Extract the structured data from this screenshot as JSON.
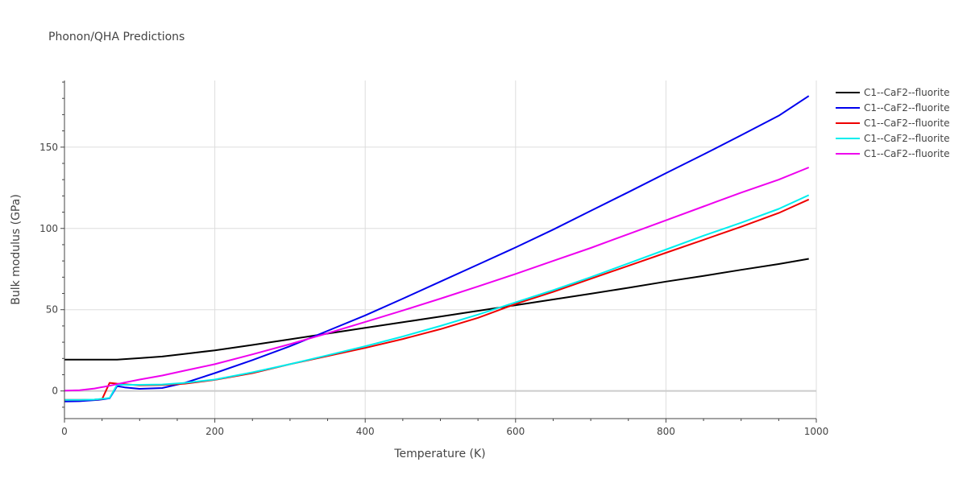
{
  "chart_data": {
    "type": "line",
    "title": "Phonon/QHA Predictions",
    "xlabel": "Temperature (K)",
    "ylabel": "Bulk modulus (GPa)",
    "xlim": [
      0,
      1000
    ],
    "ylim": [
      -17,
      191
    ],
    "xticks": [
      0,
      200,
      400,
      600,
      800,
      1000
    ],
    "xtick_labels": [
      "0",
      "200",
      "400",
      "600",
      "800",
      "1000"
    ],
    "yticks": [
      0,
      50,
      100,
      150
    ],
    "ytick_labels": [
      "0",
      "50",
      "100",
      "150"
    ],
    "grid": true,
    "legend_position": "top-right",
    "series": [
      {
        "name": "C1--CaF2--fluorite",
        "color": "#000000",
        "x": [
          0,
          20,
          40,
          70,
          100,
          130,
          160,
          200,
          250,
          300,
          350,
          400,
          450,
          500,
          550,
          600,
          650,
          700,
          750,
          800,
          850,
          900,
          950,
          990
        ],
        "y": [
          19.3,
          19.3,
          19.3,
          19.3,
          20.2,
          21.2,
          22.8,
          25.0,
          28.3,
          31.8,
          35.3,
          38.8,
          42.3,
          45.8,
          49.3,
          52.8,
          56.3,
          59.8,
          63.5,
          67.3,
          70.8,
          74.5,
          78.1,
          81.3
        ]
      },
      {
        "name": "C1--CaF2--fluorite",
        "color": "#0000ee",
        "x": [
          0,
          20,
          45,
          60,
          70,
          80,
          100,
          130,
          160,
          200,
          250,
          300,
          350,
          400,
          450,
          500,
          550,
          600,
          650,
          700,
          750,
          800,
          850,
          900,
          950,
          990
        ],
        "y": [
          -6.5,
          -6.3,
          -5.5,
          -4.5,
          3.0,
          2.2,
          1.3,
          1.8,
          5.0,
          11.0,
          19.0,
          27.5,
          37.0,
          46.5,
          56.8,
          67.3,
          77.8,
          88.3,
          99.3,
          110.8,
          122.3,
          134.0,
          145.5,
          157.3,
          169.3,
          181.5
        ]
      },
      {
        "name": "C1--CaF2--fluorite",
        "color": "#ee0000",
        "x": [
          0,
          20,
          40,
          50,
          60,
          70,
          100,
          130,
          160,
          200,
          250,
          300,
          350,
          400,
          450,
          500,
          550,
          600,
          650,
          700,
          750,
          800,
          850,
          900,
          950,
          990
        ],
        "y": [
          -5.5,
          -5.5,
          -5.3,
          -5.0,
          5.0,
          4.5,
          3.5,
          3.7,
          4.5,
          6.8,
          11.0,
          16.5,
          21.5,
          26.5,
          32.0,
          38.0,
          45.0,
          53.5,
          61.0,
          69.0,
          77.0,
          85.0,
          93.0,
          101.0,
          109.5,
          117.8
        ]
      },
      {
        "name": "C1--CaF2--fluorite",
        "color": "#00eeee",
        "x": [
          0,
          20,
          40,
          60,
          70,
          100,
          130,
          160,
          200,
          250,
          300,
          350,
          400,
          450,
          500,
          550,
          600,
          650,
          700,
          750,
          800,
          850,
          900,
          950,
          990
        ],
        "y": [
          -5.5,
          -5.5,
          -5.3,
          -4.3,
          3.8,
          3.8,
          4.0,
          5.0,
          7.0,
          11.5,
          16.5,
          22.0,
          27.5,
          33.5,
          40.0,
          47.0,
          54.5,
          62.0,
          70.0,
          78.5,
          87.0,
          95.5,
          103.5,
          112.0,
          120.5
        ]
      },
      {
        "name": "C1--CaF2--fluorite",
        "color": "#ee00ee",
        "x": [
          0,
          20,
          40,
          60,
          80,
          100,
          130,
          160,
          200,
          250,
          300,
          350,
          400,
          450,
          500,
          550,
          600,
          650,
          700,
          750,
          800,
          850,
          900,
          950,
          990
        ],
        "y": [
          0.2,
          0.5,
          1.5,
          3.2,
          5.2,
          7.0,
          9.5,
          12.5,
          16.5,
          22.5,
          28.8,
          35.5,
          42.5,
          49.5,
          56.8,
          64.3,
          72.0,
          80.0,
          88.0,
          96.5,
          105.0,
          113.5,
          122.0,
          130.0,
          137.5
        ]
      }
    ]
  }
}
